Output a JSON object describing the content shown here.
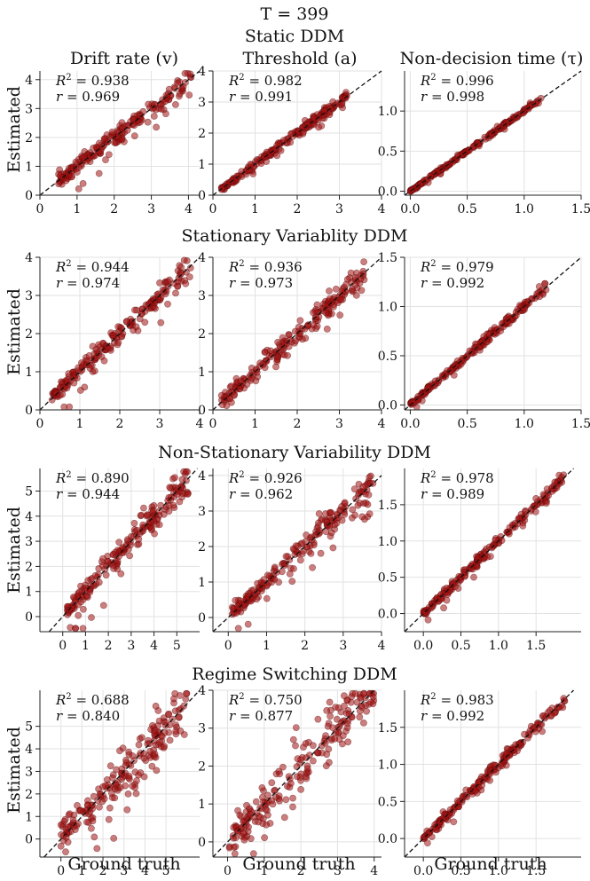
{
  "figure": {
    "title": "T = 399",
    "columns": [
      "Drift rate (v)",
      "Threshold (a)",
      "Non-decision time (τ)"
    ],
    "rows": [
      "Static DDM",
      "Stationary Variablity DDM",
      "Non-Stationary Variability DDM",
      "Regime Switching DDM"
    ],
    "ylabel": "Estimated",
    "xlabel": "Ground truth"
  },
  "colors": {
    "point": "#a01414",
    "diagonal": "#111111"
  },
  "chart_data": [
    {
      "type": "scatter",
      "row": "Static DDM",
      "param": "Drift rate (v)",
      "r2": "0.938",
      "r": "0.969",
      "xlim": [
        0,
        4.3
      ],
      "ylim": [
        0,
        4.3
      ],
      "xticks": [
        "0",
        "1",
        "2",
        "3",
        "4"
      ],
      "yticks": [
        "0",
        "1",
        "2",
        "3",
        "4"
      ],
      "n": 200,
      "xmin": 0.5,
      "xmax": 4.1,
      "spread": 0.22,
      "seed": 11
    },
    {
      "type": "scatter",
      "row": "Static DDM",
      "param": "Threshold (a)",
      "r2": "0.982",
      "r": "0.991",
      "xlim": [
        0,
        4.0
      ],
      "ylim": [
        0,
        4.0
      ],
      "xticks": [
        "0",
        "1",
        "2",
        "3",
        "4"
      ],
      "yticks": [
        "0",
        "1",
        "2",
        "3",
        "4"
      ],
      "n": 200,
      "xmin": 0.2,
      "xmax": 3.2,
      "spread": 0.1,
      "seed": 12
    },
    {
      "type": "scatter",
      "row": "Static DDM",
      "param": "Non-decision time (τ)",
      "r2": "0.996",
      "r": "0.998",
      "xlim": [
        -0.05,
        1.5
      ],
      "ylim": [
        -0.05,
        1.5
      ],
      "xticks": [
        "0.0",
        "0.5",
        "1.0",
        "1.5"
      ],
      "yticks": [
        "0.0",
        "0.5",
        "1.0"
      ],
      "tickvals": [
        0,
        0.5,
        1.0,
        1.5
      ],
      "ytickvals": [
        0,
        0.5,
        1.0
      ],
      "n": 200,
      "xmin": 0.0,
      "xmax": 1.15,
      "spread": 0.015,
      "seed": 13
    },
    {
      "type": "scatter",
      "row": "Stationary Variablity DDM",
      "param": "Drift rate (v)",
      "r2": "0.944",
      "r": "0.974",
      "xlim": [
        0,
        4.0
      ],
      "ylim": [
        0,
        4.0
      ],
      "xticks": [
        "0",
        "1",
        "2",
        "3",
        "4"
      ],
      "yticks": [
        "0",
        "1",
        "2",
        "3",
        "4"
      ],
      "n": 200,
      "xmin": 0.3,
      "xmax": 3.8,
      "spread": 0.2,
      "seed": 21
    },
    {
      "type": "scatter",
      "row": "Stationary Variablity DDM",
      "param": "Threshold (a)",
      "r2": "0.936",
      "r": "0.973",
      "xlim": [
        0,
        4.0
      ],
      "ylim": [
        0,
        4.0
      ],
      "xticks": [
        "0",
        "1",
        "2",
        "3",
        "4"
      ],
      "yticks": [
        "0",
        "1",
        "2",
        "3",
        "4"
      ],
      "n": 200,
      "xmin": 0.2,
      "xmax": 3.6,
      "spread": 0.18,
      "seed": 22
    },
    {
      "type": "scatter",
      "row": "Stationary Variablity DDM",
      "param": "Non-decision time (τ)",
      "r2": "0.979",
      "r": "0.992",
      "xlim": [
        -0.05,
        1.5
      ],
      "ylim": [
        -0.05,
        1.5
      ],
      "xticks": [
        "0.0",
        "0.5",
        "1.0",
        "1.5"
      ],
      "yticks": [
        "0.0",
        "0.5",
        "1.0",
        "1.5"
      ],
      "tickvals": [
        0,
        0.5,
        1.0,
        1.5
      ],
      "ytickvals": [
        0,
        0.5,
        1.0,
        1.5
      ],
      "n": 200,
      "xmin": 0.0,
      "xmax": 1.2,
      "spread": 0.03,
      "seed": 23
    },
    {
      "type": "scatter",
      "row": "Non-Stationary Variability DDM",
      "param": "Drift rate (v)",
      "r2": "0.890",
      "r": "0.944",
      "xlim": [
        -1.0,
        6.0
      ],
      "ylim": [
        -0.6,
        5.9
      ],
      "xticks": [
        "0",
        "1",
        "2",
        "3",
        "4",
        "5"
      ],
      "yticks": [
        "0",
        "1",
        "2",
        "3",
        "4",
        "5"
      ],
      "n": 200,
      "xmin": 0.2,
      "xmax": 5.5,
      "spread": 0.35,
      "seed": 31
    },
    {
      "type": "scatter",
      "row": "Non-Stationary Variability DDM",
      "param": "Threshold (a)",
      "r2": "0.926",
      "r": "0.962",
      "xlim": [
        -0.4,
        4.0
      ],
      "ylim": [
        -0.4,
        4.2
      ],
      "xticks": [
        "0",
        "1",
        "2",
        "3",
        "4"
      ],
      "yticks": [
        "0",
        "1",
        "2",
        "3",
        "4"
      ],
      "n": 200,
      "xmin": 0.1,
      "xmax": 3.8,
      "spread": 0.22,
      "seed": 32
    },
    {
      "type": "scatter",
      "row": "Non-Stationary Variability DDM",
      "param": "Non-decision time (τ)",
      "r2": "0.978",
      "r": "0.989",
      "xlim": [
        -0.25,
        2.1
      ],
      "ylim": [
        -0.25,
        2.0
      ],
      "xticks": [
        "0.0",
        "0.5",
        "1.0",
        "1.5"
      ],
      "yticks": [
        "0.0",
        "0.5",
        "1.0",
        "1.5"
      ],
      "tickvals": [
        0,
        0.5,
        1.0,
        1.5
      ],
      "ytickvals": [
        0,
        0.5,
        1.0,
        1.5
      ],
      "n": 200,
      "xmin": 0.0,
      "xmax": 1.9,
      "spread": 0.05,
      "seed": 33
    },
    {
      "type": "scatter",
      "row": "Regime Switching DDM",
      "param": "Drift rate (v)",
      "r2": "0.688",
      "r": "0.840",
      "xlim": [
        -1.0,
        6.6
      ],
      "ylim": [
        -0.8,
        6.6
      ],
      "xticks": [
        "0",
        "1",
        "2",
        "3",
        "4",
        "5"
      ],
      "yticks": [
        "0",
        "1",
        "2",
        "3",
        "4",
        "5"
      ],
      "n": 200,
      "xmin": 0.0,
      "xmax": 6.0,
      "spread": 0.7,
      "seed": 41
    },
    {
      "type": "scatter",
      "row": "Regime Switching DDM",
      "param": "Threshold (a)",
      "r2": "0.750",
      "r": "0.877",
      "xlim": [
        -0.4,
        4.2
      ],
      "ylim": [
        -0.4,
        4.0
      ],
      "xticks": [
        "0",
        "1",
        "2",
        "3",
        "4"
      ],
      "yticks": [
        "0",
        "1",
        "2",
        "3",
        "4"
      ],
      "n": 200,
      "xmin": 0.05,
      "xmax": 4.0,
      "spread": 0.45,
      "seed": 42
    },
    {
      "type": "scatter",
      "row": "Regime Switching DDM",
      "param": "Non-decision time (τ)",
      "r2": "0.983",
      "r": "0.992",
      "xlim": [
        -0.25,
        2.1
      ],
      "ylim": [
        -0.25,
        2.0
      ],
      "xticks": [
        "0.0",
        "0.5",
        "1.0",
        "1.5"
      ],
      "yticks": [
        "0.0",
        "0.5",
        "1.0",
        "1.5"
      ],
      "tickvals": [
        0,
        0.5,
        1.0,
        1.5
      ],
      "ytickvals": [
        0,
        0.5,
        1.0,
        1.5
      ],
      "n": 200,
      "xmin": 0.0,
      "xmax": 1.9,
      "spread": 0.05,
      "seed": 43
    }
  ]
}
